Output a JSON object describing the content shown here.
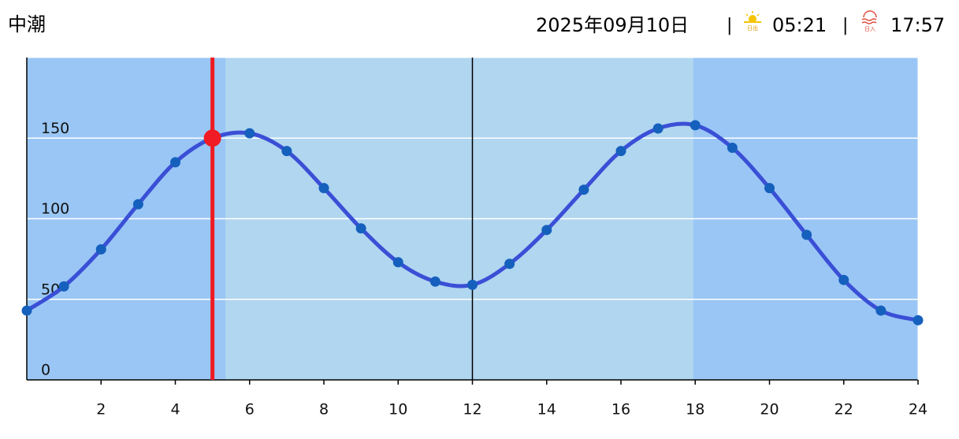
{
  "header": {
    "tide_name": "中潮",
    "date": "2025年09月10日",
    "separator": "|",
    "sunrise_icon_label": "日出",
    "sunrise": "05:21",
    "sunset_icon_label": "日入",
    "sunset": "17:57"
  },
  "chart_data": {
    "type": "line",
    "x": [
      0,
      1,
      2,
      3,
      4,
      5,
      6,
      7,
      8,
      9,
      10,
      11,
      12,
      13,
      14,
      15,
      16,
      17,
      18,
      19,
      20,
      21,
      22,
      23,
      24
    ],
    "series": [
      {
        "color": "#3a4fd6",
        "marker_color": "#1560bd",
        "values": [
          43,
          58,
          81,
          109,
          135,
          150,
          153,
          142,
          119,
          94,
          73,
          61,
          59,
          72,
          93,
          118,
          142,
          156,
          158,
          144,
          119,
          90,
          62,
          43,
          37
        ]
      }
    ],
    "highlight_index": 5,
    "highlight_color": "#f01b24",
    "xlim": [
      0,
      24
    ],
    "xticks": [
      2,
      4,
      6,
      8,
      10,
      12,
      14,
      16,
      18,
      20,
      22,
      24
    ],
    "ylim": [
      0,
      200
    ],
    "yticks": [
      0,
      50,
      100,
      150
    ],
    "grid": true,
    "night_color": "#99c6f5",
    "day_color": "#b0d6f0"
  }
}
